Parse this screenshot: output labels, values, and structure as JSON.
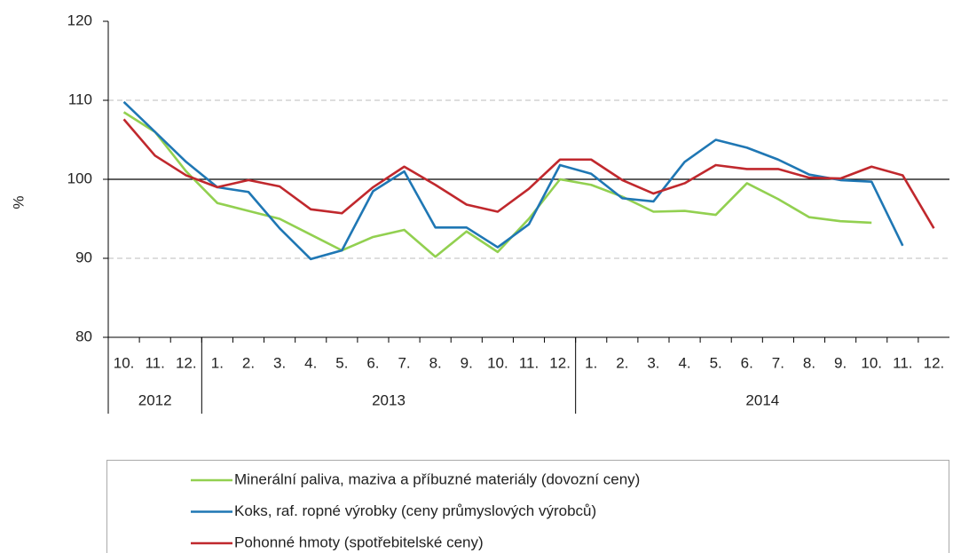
{
  "chart_data": {
    "type": "line",
    "y_label": "%",
    "categories": [
      "10.",
      "11.",
      "12.",
      "1.",
      "2.",
      "3.",
      "4.",
      "5.",
      "6.",
      "7.",
      "8.",
      "9.",
      "10.",
      "11.",
      "12.",
      "1.",
      "2.",
      "3.",
      "4.",
      "5.",
      "6.",
      "7.",
      "8.",
      "9.",
      "10.",
      "11.",
      "12."
    ],
    "x_groups": [
      {
        "label": "2012",
        "count": 3
      },
      {
        "label": "2013",
        "count": 12
      },
      {
        "label": "2014",
        "count": 12
      }
    ],
    "series": [
      {
        "name": "Minerální paliva, maziva a příbuzné materiály (dovozní ceny)",
        "color": "#92d050",
        "values": [
          108.5,
          106,
          101,
          97,
          96,
          95,
          93,
          91,
          92.7,
          93.6,
          90.2,
          93.4,
          90.8,
          95,
          100,
          99.3,
          97.8,
          95.9,
          96,
          95.5,
          99.5,
          97.5,
          95.2,
          94.7,
          94.5,
          null,
          null
        ]
      },
      {
        "name": "Koks, raf. ropné výrobky (ceny průmyslových výrobců)",
        "color": "#1f77b4",
        "values": [
          109.8,
          106,
          102.2,
          99,
          98.4,
          93.8,
          89.9,
          91,
          98.5,
          101,
          93.9,
          93.9,
          91.4,
          94.3,
          101.8,
          100.7,
          97.6,
          97.2,
          102.2,
          105,
          104,
          102.5,
          100.6,
          99.9,
          99.7,
          91.6,
          null
        ]
      },
      {
        "name": "Pohonné hmoty (spotřebitelské ceny)",
        "color": "#c0282d",
        "values": [
          107.6,
          103,
          100.5,
          99,
          99.9,
          99.1,
          96.2,
          95.7,
          99,
          101.6,
          99.3,
          96.8,
          95.9,
          98.8,
          102.5,
          102.5,
          99.9,
          98.2,
          99.5,
          101.8,
          101.3,
          101.3,
          100.2,
          100.1,
          101.6,
          100.5,
          93.8
        ]
      }
    ],
    "ylim": [
      80,
      120
    ],
    "yticks": [
      80,
      90,
      100,
      110,
      120
    ],
    "grid": true,
    "reference_line": 100,
    "legend": "bottom"
  }
}
